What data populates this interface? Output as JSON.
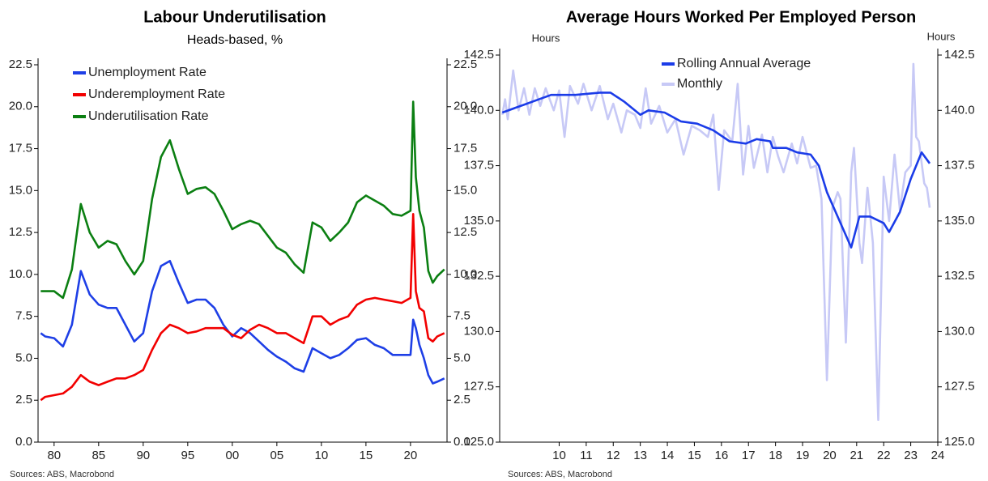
{
  "chart_data": [
    {
      "type": "line",
      "title": "Labour Underutilisation",
      "subtitle": "Heads-based, %",
      "source": "Sources: ABS, Macrobond",
      "legend": "upper left",
      "x": [
        1978.5,
        1979,
        1980,
        1981,
        1982,
        1983,
        1984,
        1985,
        1986,
        1987,
        1988,
        1989,
        1990,
        1991,
        1992,
        1993,
        1994,
        1995,
        1996,
        1997,
        1998,
        1999,
        2000,
        2001,
        2002,
        2003,
        2004,
        2005,
        2006,
        2007,
        2008,
        2009,
        2010,
        2011,
        2012,
        2013,
        2014,
        2015,
        2016,
        2017,
        2018,
        2019,
        2020,
        2020.3,
        2020.6,
        2021,
        2021.5,
        2022,
        2022.5,
        2023,
        2023.8
      ],
      "xlim": [
        1978.2,
        2024.1
      ],
      "xticks": [
        {
          "value": 1980,
          "label": "80"
        },
        {
          "value": 1985,
          "label": "85"
        },
        {
          "value": 1990,
          "label": "90"
        },
        {
          "value": 1995,
          "label": "95"
        },
        {
          "value": 2000,
          "label": "00"
        },
        {
          "value": 2005,
          "label": "05"
        },
        {
          "value": 2010,
          "label": "10"
        },
        {
          "value": 2015,
          "label": "15"
        },
        {
          "value": 2020,
          "label": "20"
        }
      ],
      "ylim": [
        0,
        22.5
      ],
      "yticks": [
        {
          "value": 0,
          "label": "0.0"
        },
        2.5,
        {
          "value": 5,
          "label": "5.0"
        },
        7.5,
        {
          "value": 10,
          "label": "10.0"
        },
        12.5,
        {
          "value": 15,
          "label": "15.0"
        },
        17.5,
        {
          "value": 20,
          "label": "20.0"
        },
        22.5
      ],
      "y2lim": [
        0,
        22.5
      ],
      "y2ticks": [
        {
          "value": 0,
          "label": "0.0"
        },
        2.5,
        {
          "value": 5,
          "label": "5.0"
        },
        7.5,
        {
          "value": 10,
          "label": "10.0"
        },
        12.5,
        {
          "value": 15,
          "label": "15.0"
        },
        17.5,
        {
          "value": 20,
          "label": "20.0"
        },
        22.5
      ],
      "series": [
        {
          "name": "Unemployment Rate",
          "color": "#1e3fe6",
          "values": [
            6.5,
            6.3,
            6.2,
            5.7,
            7.0,
            10.2,
            8.8,
            8.2,
            8.0,
            8.0,
            7.0,
            6.0,
            6.5,
            9.0,
            10.5,
            10.8,
            9.5,
            8.3,
            8.5,
            8.5,
            8.0,
            7.0,
            6.3,
            6.8,
            6.5,
            6.0,
            5.5,
            5.1,
            4.8,
            4.4,
            4.2,
            5.6,
            5.3,
            5.0,
            5.2,
            5.6,
            6.1,
            6.2,
            5.8,
            5.6,
            5.2,
            5.2,
            5.2,
            7.3,
            6.8,
            5.8,
            5.0,
            4.0,
            3.5,
            3.6,
            3.8
          ]
        },
        {
          "name": "Underemployment Rate",
          "color": "#f20000",
          "values": [
            2.5,
            2.7,
            2.8,
            2.9,
            3.3,
            4.0,
            3.6,
            3.4,
            3.6,
            3.8,
            3.8,
            4.0,
            4.3,
            5.5,
            6.5,
            7.0,
            6.8,
            6.5,
            6.6,
            6.8,
            6.8,
            6.8,
            6.4,
            6.2,
            6.7,
            7.0,
            6.8,
            6.5,
            6.5,
            6.2,
            5.9,
            7.5,
            7.5,
            7.0,
            7.3,
            7.5,
            8.2,
            8.5,
            8.6,
            8.5,
            8.4,
            8.3,
            8.6,
            13.6,
            9.0,
            8.0,
            7.8,
            6.2,
            6.0,
            6.3,
            6.5
          ]
        },
        {
          "name": "Underutilisation Rate",
          "color": "#0b7f12",
          "values": [
            9.0,
            9.0,
            9.0,
            8.6,
            10.3,
            14.2,
            12.5,
            11.6,
            12.0,
            11.8,
            10.8,
            10.0,
            10.8,
            14.5,
            17.0,
            18.0,
            16.3,
            14.8,
            15.1,
            15.2,
            14.8,
            13.8,
            12.7,
            13.0,
            13.2,
            13.0,
            12.3,
            11.6,
            11.3,
            10.6,
            10.1,
            13.1,
            12.8,
            12.0,
            12.5,
            13.1,
            14.3,
            14.7,
            14.4,
            14.1,
            13.6,
            13.5,
            13.8,
            20.3,
            15.8,
            13.8,
            12.8,
            10.2,
            9.5,
            9.9,
            10.3
          ]
        }
      ]
    },
    {
      "type": "line",
      "title": "Average Hours Worked Per Employed Person",
      "source": "Sources: ABS, Macrobond",
      "y_label": "Hours",
      "y2_label": "Hours",
      "legend": "upper center",
      "xlim": [
        2007.8,
        2024.0
      ],
      "xticks": [
        {
          "value": 2010,
          "label": "10"
        },
        {
          "value": 2011,
          "label": "11"
        },
        {
          "value": 2012,
          "label": "12"
        },
        {
          "value": 2013,
          "label": "13"
        },
        {
          "value": 2014,
          "label": "14"
        },
        {
          "value": 2015,
          "label": "15"
        },
        {
          "value": 2016,
          "label": "16"
        },
        {
          "value": 2017,
          "label": "17"
        },
        {
          "value": 2018,
          "label": "18"
        },
        {
          "value": 2019,
          "label": "19"
        },
        {
          "value": 2020,
          "label": "20"
        },
        {
          "value": 2021,
          "label": "21"
        },
        {
          "value": 2022,
          "label": "22"
        },
        {
          "value": 2023,
          "label": "23"
        },
        {
          "value": 2024,
          "label": "24"
        }
      ],
      "ylim": [
        125,
        142.5
      ],
      "yticks": [
        {
          "value": 125,
          "label": "125.0"
        },
        127.5,
        {
          "value": 130,
          "label": "130.0"
        },
        132.5,
        {
          "value": 135,
          "label": "135.0"
        },
        137.5,
        {
          "value": 140,
          "label": "140.0"
        },
        142.5
      ],
      "y2lim": [
        125,
        142.5
      ],
      "y2ticks": [
        {
          "value": 125,
          "label": "125.0"
        },
        127.5,
        {
          "value": 130,
          "label": "130.0"
        },
        132.5,
        {
          "value": 135,
          "label": "135.0"
        },
        137.5,
        {
          "value": 140,
          "label": "140.0"
        },
        142.5
      ],
      "series": [
        {
          "name": "Monthly",
          "color": "#c7c9f6",
          "x": [
            2007.9,
            2008.0,
            2008.1,
            2008.3,
            2008.5,
            2008.7,
            2008.9,
            2009.1,
            2009.3,
            2009.5,
            2009.8,
            2010.0,
            2010.2,
            2010.4,
            2010.7,
            2010.9,
            2011.2,
            2011.5,
            2011.8,
            2012.0,
            2012.3,
            2012.5,
            2012.8,
            2013.0,
            2013.2,
            2013.4,
            2013.7,
            2014.0,
            2014.3,
            2014.6,
            2014.9,
            2015.2,
            2015.5,
            2015.7,
            2015.9,
            2016.1,
            2016.4,
            2016.6,
            2016.8,
            2017.0,
            2017.2,
            2017.5,
            2017.7,
            2017.9,
            2018.1,
            2018.3,
            2018.6,
            2018.8,
            2019.0,
            2019.3,
            2019.5,
            2019.7,
            2019.9,
            2020.1,
            2020.3,
            2020.4,
            2020.6,
            2020.8,
            2020.9,
            2021.1,
            2021.2,
            2021.4,
            2021.6,
            2021.8,
            2022.0,
            2022.2,
            2022.4,
            2022.6,
            2022.8,
            2023.0,
            2023.1,
            2023.2,
            2023.3,
            2023.5,
            2023.6,
            2023.7
          ],
          "values": [
            139.8,
            140.5,
            139.6,
            141.8,
            140.0,
            141.0,
            139.8,
            141.0,
            140.2,
            141.0,
            140.0,
            140.9,
            138.8,
            141.1,
            140.3,
            141.2,
            140.0,
            141.1,
            139.6,
            140.3,
            139.0,
            140.0,
            139.8,
            139.2,
            141.0,
            139.4,
            140.2,
            139.0,
            139.6,
            138.0,
            139.3,
            139.1,
            138.8,
            139.8,
            136.4,
            139.1,
            138.6,
            141.2,
            137.1,
            139.3,
            137.4,
            138.9,
            137.2,
            138.8,
            137.9,
            137.2,
            138.5,
            137.6,
            138.8,
            137.4,
            137.5,
            136.0,
            127.8,
            135.6,
            136.3,
            136.0,
            129.5,
            137.2,
            138.3,
            134.0,
            133.1,
            136.5,
            134.0,
            126.0,
            137.0,
            135.0,
            138.0,
            135.5,
            137.2,
            137.5,
            142.1,
            138.8,
            138.6,
            136.7,
            136.5,
            135.6
          ]
        },
        {
          "name": "Rolling Annual Average",
          "color": "#1b3ce8",
          "x": [
            2007.9,
            2008.8,
            2009.7,
            2010.6,
            2011.5,
            2011.9,
            2012.4,
            2013.0,
            2013.3,
            2013.9,
            2014.5,
            2015.1,
            2015.7,
            2016.3,
            2016.9,
            2017.3,
            2017.8,
            2017.9,
            2018.4,
            2018.8,
            2019.3,
            2019.6,
            2019.9,
            2020.8,
            2021.1,
            2021.5,
            2022.0,
            2022.2,
            2022.6,
            2023.0,
            2023.4,
            2023.7
          ],
          "values": [
            139.9,
            140.3,
            140.7,
            140.7,
            140.8,
            140.8,
            140.4,
            139.8,
            140.0,
            139.9,
            139.5,
            139.4,
            139.1,
            138.6,
            138.5,
            138.7,
            138.6,
            138.3,
            138.3,
            138.1,
            138.0,
            137.5,
            136.3,
            133.8,
            135.2,
            135.2,
            134.9,
            134.5,
            135.4,
            136.9,
            138.1,
            137.6
          ]
        }
      ]
    }
  ]
}
